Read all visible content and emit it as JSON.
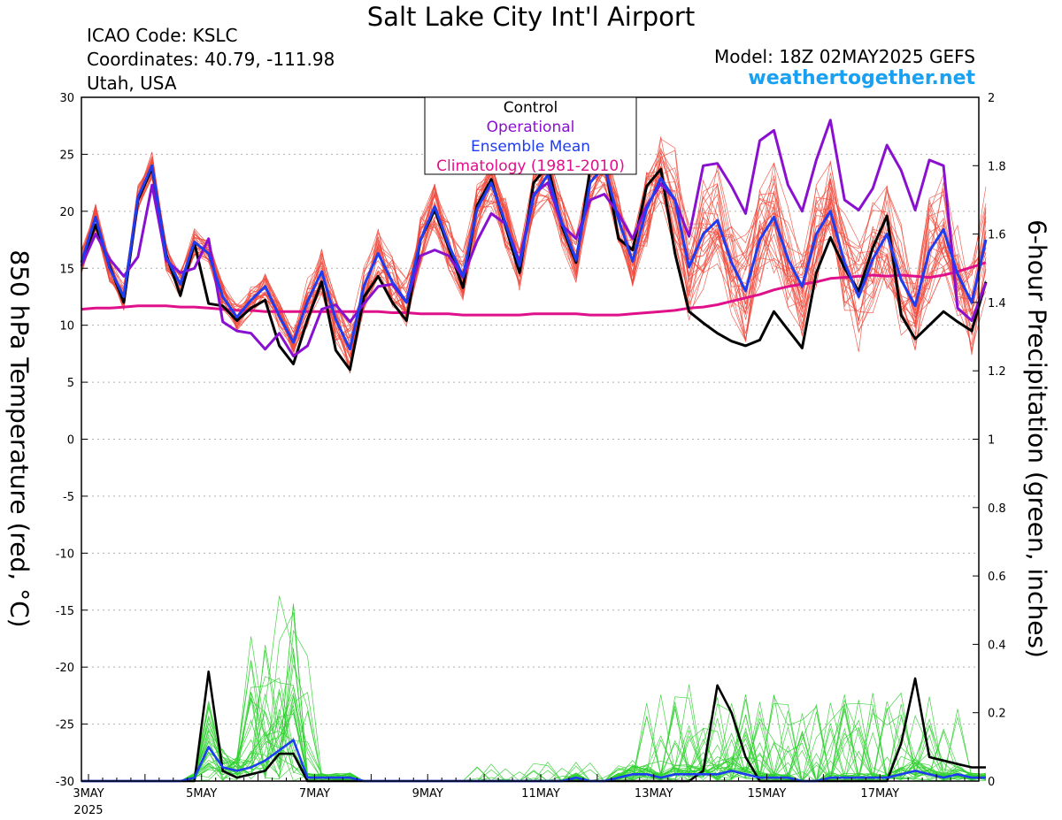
{
  "header": {
    "title": "Salt Lake City Int'l Airport",
    "icao": "ICAO Code: KSLC",
    "coordinates": "Coordinates: 40.79, -111.98",
    "region": "Utah, USA",
    "model": "Model: 18Z 02MAY2025 GEFS",
    "site": "weathertogether.net"
  },
  "chart_data": {
    "type": "line",
    "title": "Salt Lake City Int'l Airport",
    "xlabel": "",
    "ylabel": "850 hPa Temperature (red, °C)",
    "y2label": "6-hour Precipitation (green, inches)",
    "ylim": [
      -30,
      30
    ],
    "y2lim": [
      0,
      2
    ],
    "xlim": [
      0,
      63.5
    ],
    "x_unit": "6-hour steps from 18Z 02MAY2025",
    "y_ticks": [
      -30,
      -25,
      -20,
      -15,
      -10,
      -5,
      0,
      5,
      10,
      15,
      20,
      25,
      30
    ],
    "y2_ticks": [
      "0",
      "0.2",
      "0.4",
      "0.6",
      "0.8",
      "1",
      "1.2",
      "1.4",
      "1.6",
      "1.8",
      "2"
    ],
    "x_ticks": [
      {
        "x": 0.5,
        "label": "3MAY",
        "sub": "2025"
      },
      {
        "x": 8.5,
        "label": "5MAY"
      },
      {
        "x": 16.5,
        "label": "7MAY"
      },
      {
        "x": 24.5,
        "label": "9MAY"
      },
      {
        "x": 32.5,
        "label": "11MAY"
      },
      {
        "x": 40.5,
        "label": "13MAY"
      },
      {
        "x": 48.5,
        "label": "15MAY"
      },
      {
        "x": 56.5,
        "label": "17MAY"
      }
    ],
    "grid": "horizontal dotted",
    "legend_position": "top-center",
    "legend": [
      {
        "label": "Control",
        "color": "#000000"
      },
      {
        "label": "Operational",
        "color": "#8a10d0"
      },
      {
        "label": "Ensemble Mean",
        "color": "#1e3cf0"
      },
      {
        "label": "Climatology (1981-2010)",
        "color": "#e0108a"
      }
    ],
    "series": [
      {
        "name": "Control",
        "axis": "temperature",
        "color": "#000000",
        "values": [
          15.5,
          18.8,
          15.2,
          12.0,
          21.0,
          23.8,
          16.2,
          12.6,
          17.2,
          11.9,
          11.7,
          10.4,
          11.5,
          12.2,
          8.2,
          6.6,
          10.5,
          13.8,
          7.8,
          6.1,
          12.5,
          14.3,
          12.0,
          10.4,
          17.5,
          20.1,
          16.8,
          13.3,
          20.5,
          22.8,
          18.7,
          14.6,
          22.5,
          24.0,
          18.7,
          15.5,
          23.7,
          24.5,
          17.6,
          16.6,
          22.2,
          23.7,
          16.3,
          11.2,
          10.2,
          9.3,
          8.6,
          8.2,
          8.7,
          11.2,
          9.6,
          8.0,
          14.6,
          17.7,
          15.0,
          13.0,
          16.8,
          19.6,
          10.9,
          8.8,
          10.0,
          11.2,
          10.3,
          9.5,
          13.8
        ]
      },
      {
        "name": "Operational",
        "axis": "temperature",
        "color": "#8a10d0",
        "values": [
          15.2,
          18.0,
          15.8,
          14.3,
          16.0,
          22.3,
          15.7,
          14.6,
          15.0,
          17.6,
          10.3,
          9.5,
          9.3,
          7.9,
          9.3,
          7.3,
          8.2,
          11.4,
          11.8,
          10.3,
          11.9,
          13.4,
          13.6,
          12.0,
          16.1,
          16.6,
          16.1,
          14.2,
          17.4,
          19.8,
          18.9,
          15.6,
          21.5,
          22.5,
          18.8,
          17.6,
          21.0,
          21.5,
          19.8,
          17.6,
          20.5,
          22.4,
          21.0,
          17.8,
          24.0,
          24.2,
          22.2,
          19.8,
          26.2,
          27.1,
          22.3,
          20.0,
          24.5,
          28.0,
          21.0,
          20.1,
          22.0,
          25.8,
          23.6,
          20.1,
          24.5,
          24.0,
          11.5,
          10.4,
          13.7
        ]
      },
      {
        "name": "Ensemble Mean",
        "axis": "temperature",
        "color": "#1e3cf0",
        "values": [
          15.5,
          19.5,
          15.0,
          12.5,
          21.2,
          24.0,
          16.0,
          13.6,
          17.3,
          16.3,
          12.5,
          10.7,
          12.2,
          13.4,
          10.8,
          8.5,
          12.1,
          14.7,
          10.5,
          7.9,
          13.5,
          16.3,
          13.8,
          12.0,
          17.5,
          20.4,
          17.0,
          14.3,
          20.2,
          22.5,
          19.0,
          15.2,
          21.3,
          23.2,
          19.0,
          15.7,
          22.5,
          24.0,
          19.3,
          15.6,
          20.2,
          22.9,
          21.0,
          15.1,
          18.0,
          19.2,
          15.5,
          13.0,
          17.5,
          19.5,
          15.8,
          13.4,
          18.0,
          20.0,
          15.5,
          12.5,
          15.8,
          18.0,
          14.0,
          11.7,
          16.5,
          18.4,
          14.5,
          12.0,
          17.5
        ]
      },
      {
        "name": "Climatology (1981-2010)",
        "axis": "temperature",
        "color": "#e0108a",
        "values": [
          11.4,
          11.5,
          11.5,
          11.6,
          11.7,
          11.7,
          11.7,
          11.6,
          11.6,
          11.5,
          11.4,
          11.3,
          11.3,
          11.2,
          11.2,
          11.2,
          11.2,
          11.2,
          11.2,
          11.2,
          11.2,
          11.2,
          11.1,
          11.1,
          11.0,
          11.0,
          11.0,
          10.9,
          10.9,
          10.9,
          10.9,
          10.9,
          11.0,
          11.0,
          11.0,
          11.0,
          10.9,
          10.9,
          10.9,
          11.0,
          11.1,
          11.2,
          11.3,
          11.5,
          11.6,
          11.8,
          12.1,
          12.4,
          12.7,
          13.1,
          13.4,
          13.6,
          13.8,
          14.1,
          14.2,
          14.3,
          14.4,
          14.3,
          14.4,
          14.3,
          14.2,
          14.4,
          14.7,
          15.1,
          15.5
        ]
      },
      {
        "name": "Control precipitation",
        "axis": "precipitation",
        "color": "#000000",
        "values": [
          0,
          0,
          0,
          0,
          0,
          0,
          0,
          0,
          0,
          0.32,
          0.03,
          0.01,
          0.02,
          0.03,
          0.08,
          0.08,
          0,
          0,
          0,
          0,
          0,
          0,
          0,
          0,
          0,
          0,
          0,
          0,
          0,
          0,
          0,
          0,
          0,
          0,
          0,
          0,
          0,
          0,
          0,
          0,
          0,
          0,
          0,
          0,
          0.03,
          0.28,
          0.2,
          0.07,
          0,
          0,
          0,
          0,
          0,
          0,
          0,
          0,
          0,
          0,
          0.11,
          0.3,
          0.07,
          0.06,
          0.05,
          0.04,
          0.04
        ]
      },
      {
        "name": "Ensemble Mean precipitation",
        "axis": "precipitation",
        "color": "#1e3cf0",
        "values": [
          0,
          0,
          0,
          0,
          0,
          0,
          0,
          0,
          0.01,
          0.1,
          0.04,
          0.03,
          0.04,
          0.06,
          0.09,
          0.12,
          0.01,
          0.01,
          0.01,
          0.01,
          0,
          0,
          0,
          0,
          0,
          0,
          0,
          0,
          0,
          0,
          0,
          0,
          0,
          0,
          0,
          0.01,
          0,
          0,
          0.01,
          0.02,
          0.02,
          0.01,
          0.02,
          0.02,
          0.02,
          0.02,
          0.03,
          0.02,
          0.01,
          0.01,
          0.01,
          0,
          0,
          0.01,
          0.01,
          0.01,
          0.01,
          0.01,
          0.02,
          0.03,
          0.02,
          0.01,
          0.02,
          0.01,
          0.01
        ]
      }
    ]
  }
}
